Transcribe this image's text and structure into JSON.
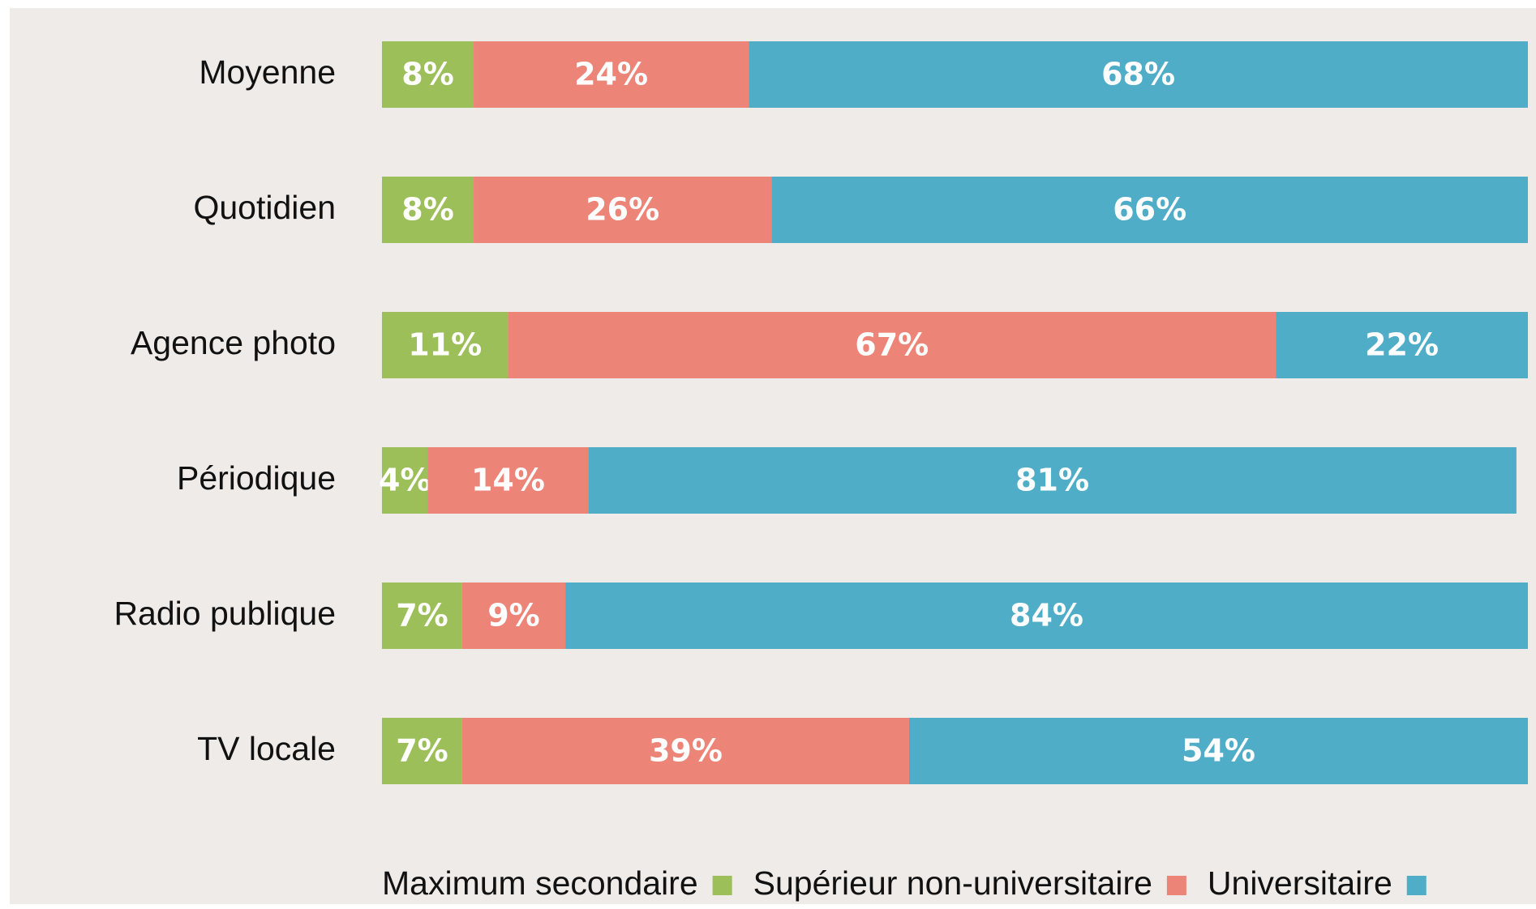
{
  "chart_data": {
    "type": "stacked-bar-horizontal",
    "categories": [
      "Moyenne",
      "Quotidien",
      "Agence photo",
      "Périodique",
      "Radio publique",
      "TV locale"
    ],
    "xlim": [
      0,
      100
    ],
    "series": [
      {
        "name": "Maximum secondaire",
        "color": "#9dbf5a",
        "values": [
          8,
          8,
          11,
          4,
          7,
          7
        ],
        "value_labels": [
          "8%",
          "8%",
          "11%",
          "4%",
          "7%",
          "7%"
        ]
      },
      {
        "name": "Supérieur non-universitaire",
        "color": "#ec8577",
        "values": [
          24,
          26,
          67,
          14,
          9,
          39
        ],
        "value_labels": [
          "24%",
          "26%",
          "67%",
          "14%",
          "9%",
          "39%"
        ]
      },
      {
        "name": "Universitaire",
        "color": "#4fadc8",
        "values": [
          68,
          66,
          22,
          81,
          84,
          54
        ],
        "value_labels": [
          "68%",
          "66%",
          "22%",
          "81%",
          "84%",
          "54%"
        ]
      }
    ]
  }
}
